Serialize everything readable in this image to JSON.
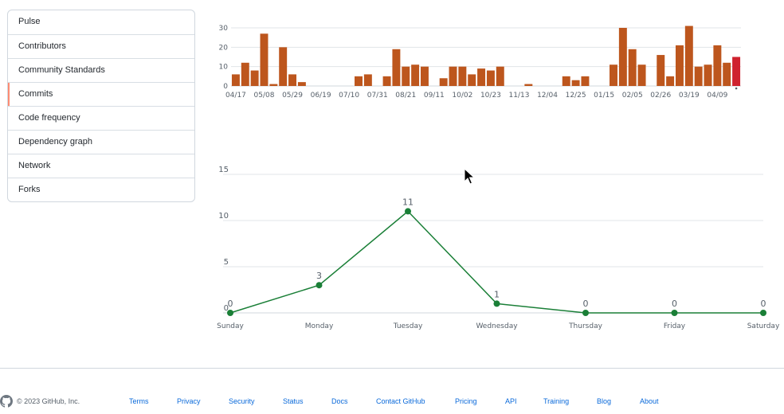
{
  "sidebar": {
    "items": [
      {
        "label": "Pulse",
        "selected": false
      },
      {
        "label": "Contributors",
        "selected": false
      },
      {
        "label": "Community Standards",
        "selected": false
      },
      {
        "label": "Commits",
        "selected": true
      },
      {
        "label": "Code frequency",
        "selected": false
      },
      {
        "label": "Dependency graph",
        "selected": false
      },
      {
        "label": "Network",
        "selected": false
      },
      {
        "label": "Forks",
        "selected": false
      }
    ]
  },
  "chart_data": [
    {
      "type": "bar",
      "x_tick_labels": [
        "04/17",
        "05/08",
        "05/29",
        "06/19",
        "07/10",
        "07/31",
        "08/21",
        "09/11",
        "10/02",
        "10/23",
        "11/13",
        "12/04",
        "12/25",
        "01/15",
        "02/05",
        "02/26",
        "03/19",
        "04/09"
      ],
      "values": [
        6,
        12,
        8,
        27,
        1,
        20,
        6,
        2,
        0,
        0,
        0,
        0,
        0,
        5,
        6,
        0,
        5,
        19,
        10,
        11,
        10,
        0,
        4,
        10,
        10,
        6,
        9,
        8,
        10,
        0,
        0,
        1,
        0,
        0,
        0,
        5,
        3,
        5,
        0,
        0,
        11,
        30,
        19,
        11,
        0,
        16,
        5,
        21,
        31,
        10,
        11,
        21,
        12,
        15
      ],
      "highlight_index": 53,
      "colors": {
        "bar": "#bd561d",
        "highlight": "#cf222e"
      },
      "ylim": [
        0,
        30
      ],
      "y_ticks": [
        0,
        10,
        20,
        30
      ],
      "grid": true
    },
    {
      "type": "line",
      "categories": [
        "Sunday",
        "Monday",
        "Tuesday",
        "Wednesday",
        "Thursday",
        "Friday",
        "Saturday"
      ],
      "values": [
        0,
        3,
        11,
        1,
        0,
        0,
        0
      ],
      "ylim": [
        0,
        15
      ],
      "y_ticks": [
        0,
        5,
        10,
        15
      ],
      "colors": {
        "line": "#1a7f37"
      },
      "grid": true
    }
  ],
  "footer": {
    "copyright": "© 2023 GitHub, Inc.",
    "links": [
      "Terms",
      "Privacy",
      "Security",
      "Status",
      "Docs",
      "Contact GitHub",
      "Pricing",
      "API",
      "Training",
      "Blog",
      "About"
    ]
  },
  "icons": {
    "footer_logo": "github-mark-icon",
    "cursor": "mouse-pointer-icon"
  }
}
